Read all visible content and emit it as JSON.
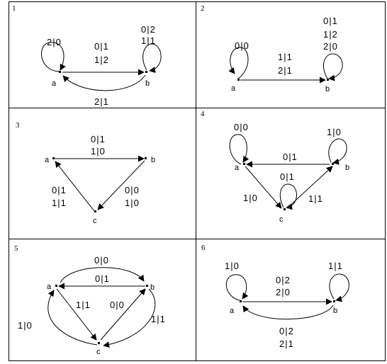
{
  "panels": [
    {
      "number": "1",
      "nodes": {
        "a": "a",
        "b": "b"
      },
      "labels": {
        "loop_a": "2|0",
        "ab_line1": "0|1",
        "ab_line2": "1|2",
        "loop_b_line1": "0|2",
        "loop_b_line2": "1|1",
        "ba": "2|1"
      }
    },
    {
      "number": "2",
      "nodes": {
        "a": "a",
        "b": "b"
      },
      "labels": {
        "loop_a": "0|0",
        "ab_line1": "1|1",
        "ab_line2": "2|1",
        "loop_b_line1": "0|1",
        "loop_b_line2": "1|2",
        "loop_b_line3": "2|0"
      }
    },
    {
      "number": "3",
      "nodes": {
        "a": "a",
        "b": "b",
        "c": "c"
      },
      "labels": {
        "ab_line1": "0|1",
        "ab_line2": "1|0",
        "bc_line1": "0|0",
        "bc_line2": "1|0",
        "ca_line1": "0|1",
        "ca_line2": "1|1"
      }
    },
    {
      "number": "4",
      "nodes": {
        "a": "a",
        "b": "b",
        "c": "c"
      },
      "labels": {
        "loop_a": "0|0",
        "loop_b": "1|0",
        "ba": "0|1",
        "loop_c": "0|1",
        "ac": "1|0",
        "cb": "1|1"
      }
    },
    {
      "number": "5",
      "nodes": {
        "a": "a",
        "b": "b",
        "c": "c"
      },
      "labels": {
        "ab_top": "0|0",
        "ba": "0|1",
        "ac": "1|1",
        "cb": "0|0",
        "ca_outer": "1|0",
        "bc_outer": "1|1"
      }
    },
    {
      "number": "6",
      "nodes": {
        "a": "a",
        "b": "b"
      },
      "labels": {
        "loop_a": "1|0",
        "loop_b": "1|1",
        "ab_line1": "0|2",
        "ab_line2": "2|0",
        "ba_line1": "0|2",
        "ba_line2": "2|1"
      }
    }
  ]
}
